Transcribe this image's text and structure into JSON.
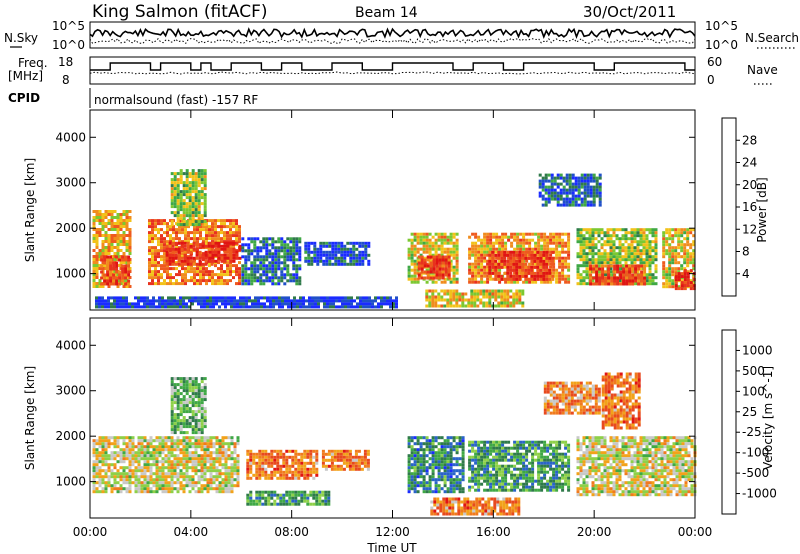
{
  "header": {
    "station": "King Salmon (fitACF)",
    "beam": "Beam 14",
    "date": "30/Oct/2011"
  },
  "noise_panel": {
    "left_label": "N.Sky",
    "right_label": "N.Search",
    "left_ticks": [
      "10^5",
      "10^0"
    ],
    "right_ticks": [
      "10^5",
      "10^0"
    ]
  },
  "freq_panel": {
    "left_label_1": "Freq.",
    "left_label_2": "[MHz]",
    "right_label": "Nave",
    "left_ticks": [
      "18",
      "8"
    ],
    "right_ticks": [
      "60",
      "0"
    ]
  },
  "cpid": {
    "label": "CPID",
    "text": "normalsound (fast) -157 RF"
  },
  "chart_data": [
    {
      "type": "heatmap",
      "title": "",
      "ylabel": "Slant Range [km]",
      "xlabel": "",
      "ylim": [
        200,
        4600
      ],
      "xlim": [
        0,
        24
      ],
      "y_ticks": [
        "1000",
        "2000",
        "3000",
        "4000"
      ],
      "x_ticks": [
        "00:00",
        "04:00",
        "08:00",
        "12:00",
        "16:00",
        "20:00",
        "00:00"
      ],
      "colorbar": {
        "label": "Power [dB]",
        "ticks": [
          "4",
          "8",
          "12",
          "16",
          "20",
          "24",
          "28"
        ],
        "colors": [
          "#1a2bff",
          "#2050c8",
          "#2f7a4a",
          "#3fa845",
          "#7cc832",
          "#f2c21a",
          "#f08c1e",
          "#ee5a1e",
          "#e8321e",
          "#e01414"
        ]
      },
      "regions": [
        {
          "t0": 0.1,
          "t1": 1.6,
          "r0": 700,
          "r1": 2400,
          "level": 0.6
        },
        {
          "t0": 0.4,
          "t1": 1.5,
          "r0": 800,
          "r1": 1400,
          "level": 0.8
        },
        {
          "t0": 2.3,
          "t1": 5.9,
          "r0": 800,
          "r1": 2200,
          "level": 0.7
        },
        {
          "t0": 3.0,
          "t1": 4.8,
          "r0": 1200,
          "r1": 1700,
          "level": 0.85
        },
        {
          "t0": 4.7,
          "t1": 5.9,
          "r0": 1300,
          "r1": 1700,
          "level": 0.9
        },
        {
          "t0": 3.2,
          "t1": 4.6,
          "r0": 2100,
          "r1": 3300,
          "level": 0.45
        },
        {
          "t0": 6.0,
          "t1": 8.3,
          "r0": 800,
          "r1": 1800,
          "level": 0.2
        },
        {
          "t0": 8.5,
          "t1": 11.0,
          "r0": 1200,
          "r1": 1700,
          "level": 0.15
        },
        {
          "t0": 12.6,
          "t1": 14.6,
          "r0": 800,
          "r1": 1900,
          "level": 0.55
        },
        {
          "t0": 13.0,
          "t1": 14.2,
          "r0": 900,
          "r1": 1400,
          "level": 0.85
        },
        {
          "t0": 15.0,
          "t1": 19.0,
          "r0": 800,
          "r1": 1900,
          "level": 0.65
        },
        {
          "t0": 15.8,
          "t1": 18.4,
          "r0": 900,
          "r1": 1500,
          "level": 0.85
        },
        {
          "t0": 19.3,
          "t1": 22.5,
          "r0": 800,
          "r1": 2000,
          "level": 0.45
        },
        {
          "t0": 19.8,
          "t1": 22.0,
          "r0": 800,
          "r1": 1200,
          "level": 0.8
        },
        {
          "t0": 22.7,
          "t1": 24.0,
          "r0": 700,
          "r1": 2000,
          "level": 0.55
        },
        {
          "t0": 23.2,
          "t1": 24.0,
          "r0": 700,
          "r1": 1100,
          "level": 0.85
        },
        {
          "t0": 0.2,
          "t1": 12.2,
          "r0": 250,
          "r1": 500,
          "level": 0.1
        },
        {
          "t0": 13.3,
          "t1": 17.2,
          "r0": 300,
          "r1": 650,
          "level": 0.55
        },
        {
          "t0": 17.8,
          "t1": 20.2,
          "r0": 2500,
          "r1": 3200,
          "level": 0.2
        }
      ]
    },
    {
      "type": "heatmap",
      "title": "",
      "ylabel": "Slant Range [km]",
      "xlabel": "Time UT",
      "ylim": [
        200,
        4600
      ],
      "xlim": [
        0,
        24
      ],
      "y_ticks": [
        "1000",
        "2000",
        "3000",
        "4000"
      ],
      "x_ticks": [
        "00:00",
        "04:00",
        "08:00",
        "12:00",
        "16:00",
        "20:00",
        "00:00"
      ],
      "colorbar": {
        "label": "Velocity [m s^-1]",
        "ticks": [
          "1000",
          "500",
          "100",
          "25",
          "-25",
          "-100",
          "-500",
          "-1000"
        ],
        "colors": [
          "#1a2bff",
          "#2a64c8",
          "#2f7a4a",
          "#3fa845",
          "#8ed048",
          "#c8c8c8",
          "#f2a21a",
          "#f07a1e",
          "#e84a1e",
          "#e01414"
        ]
      },
      "regions": [
        {
          "t0": 0.1,
          "t1": 5.9,
          "r0": 800,
          "r1": 2000,
          "level": 0.55
        },
        {
          "t0": 3.2,
          "t1": 4.6,
          "r0": 2100,
          "r1": 3300,
          "level": 0.4
        },
        {
          "t0": 6.2,
          "t1": 9.0,
          "r0": 1100,
          "r1": 1700,
          "level": 0.75
        },
        {
          "t0": 9.2,
          "t1": 11.0,
          "r0": 1300,
          "r1": 1700,
          "level": 0.75
        },
        {
          "t0": 6.2,
          "t1": 9.5,
          "r0": 500,
          "r1": 800,
          "level": 0.3
        },
        {
          "t0": 12.6,
          "t1": 14.8,
          "r0": 800,
          "r1": 2000,
          "level": 0.25
        },
        {
          "t0": 15.0,
          "t1": 19.0,
          "r0": 800,
          "r1": 1900,
          "level": 0.3
        },
        {
          "t0": 13.5,
          "t1": 17.0,
          "r0": 300,
          "r1": 650,
          "level": 0.75
        },
        {
          "t0": 19.3,
          "t1": 24.0,
          "r0": 700,
          "r1": 2000,
          "level": 0.55
        },
        {
          "t0": 18.0,
          "t1": 20.2,
          "r0": 2500,
          "r1": 3200,
          "level": 0.7
        },
        {
          "t0": 20.3,
          "t1": 21.8,
          "r0": 2200,
          "r1": 3400,
          "level": 0.75
        }
      ]
    }
  ]
}
